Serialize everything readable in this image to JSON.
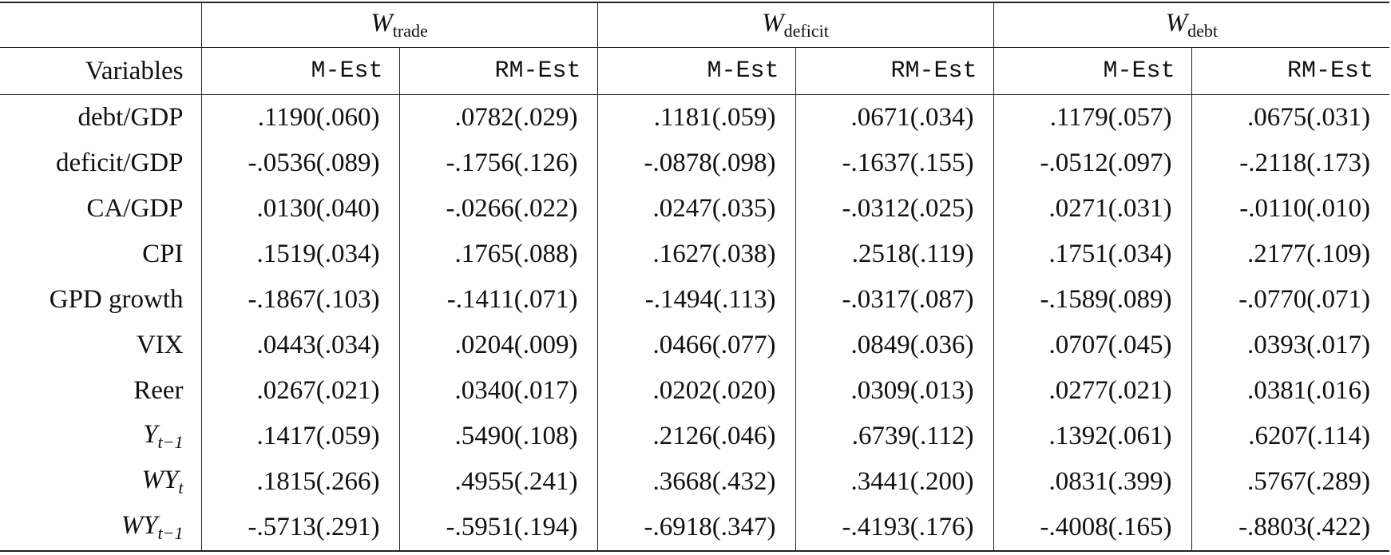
{
  "table": {
    "groups": [
      {
        "main": "W",
        "sub": "trade"
      },
      {
        "main": "W",
        "sub": "deficit"
      },
      {
        "main": "W",
        "sub": "debt"
      }
    ],
    "stub_header": "Variables",
    "subheaders": [
      "M-Est",
      "RM-Est",
      "M-Est",
      "RM-Est",
      "M-Est",
      "RM-Est"
    ],
    "rows": [
      {
        "label": {
          "main": "debt/GDP"
        },
        "cells": [
          ".1190(.060)",
          ".0782(.029)",
          ".1181(.059)",
          ".0671(.034)",
          ".1179(.057)",
          ".0675(.031)"
        ]
      },
      {
        "label": {
          "main": "deficit/GDP"
        },
        "cells": [
          "-.0536(.089)",
          "-.1756(.126)",
          "-.0878(.098)",
          "-.1637(.155)",
          "-.0512(.097)",
          "-.2118(.173)"
        ]
      },
      {
        "label": {
          "main": "CA/GDP"
        },
        "cells": [
          ".0130(.040)",
          "-.0266(.022)",
          ".0247(.035)",
          "-.0312(.025)",
          ".0271(.031)",
          "-.0110(.010)"
        ]
      },
      {
        "label": {
          "main": "CPI"
        },
        "cells": [
          ".1519(.034)",
          ".1765(.088)",
          ".1627(.038)",
          ".2518(.119)",
          ".1751(.034)",
          ".2177(.109)"
        ]
      },
      {
        "label": {
          "main": "GPD growth"
        },
        "cells": [
          "-.1867(.103)",
          "-.1411(.071)",
          "-.1494(.113)",
          "-.0317(.087)",
          "-.1589(.089)",
          "-.0770(.071)"
        ]
      },
      {
        "label": {
          "main": "VIX"
        },
        "cells": [
          ".0443(.034)",
          ".0204(.009)",
          ".0466(.077)",
          ".0849(.036)",
          ".0707(.045)",
          ".0393(.017)"
        ]
      },
      {
        "label": {
          "main": "Reer"
        },
        "cells": [
          ".0267(.021)",
          ".0340(.017)",
          ".0202(.020)",
          ".0309(.013)",
          ".0277(.021)",
          ".0381(.016)"
        ]
      },
      {
        "label": {
          "main": "Y",
          "sub": "t−1"
        },
        "cells": [
          ".1417(.059)",
          ".5490(.108)",
          ".2126(.046)",
          ".6739(.112)",
          ".1392(.061)",
          ".6207(.114)"
        ]
      },
      {
        "label": {
          "main": "WY",
          "sub": "t"
        },
        "cells": [
          ".1815(.266)",
          ".4955(.241)",
          ".3668(.432)",
          ".3441(.200)",
          ".0831(.399)",
          ".5767(.289)"
        ]
      },
      {
        "label": {
          "main": "WY",
          "sub": "t−1"
        },
        "cells": [
          "-.5713(.291)",
          "-.5951(.194)",
          "-.6918(.347)",
          "-.4193(.176)",
          "-.4008(.165)",
          "-.8803(.422)"
        ]
      }
    ]
  }
}
